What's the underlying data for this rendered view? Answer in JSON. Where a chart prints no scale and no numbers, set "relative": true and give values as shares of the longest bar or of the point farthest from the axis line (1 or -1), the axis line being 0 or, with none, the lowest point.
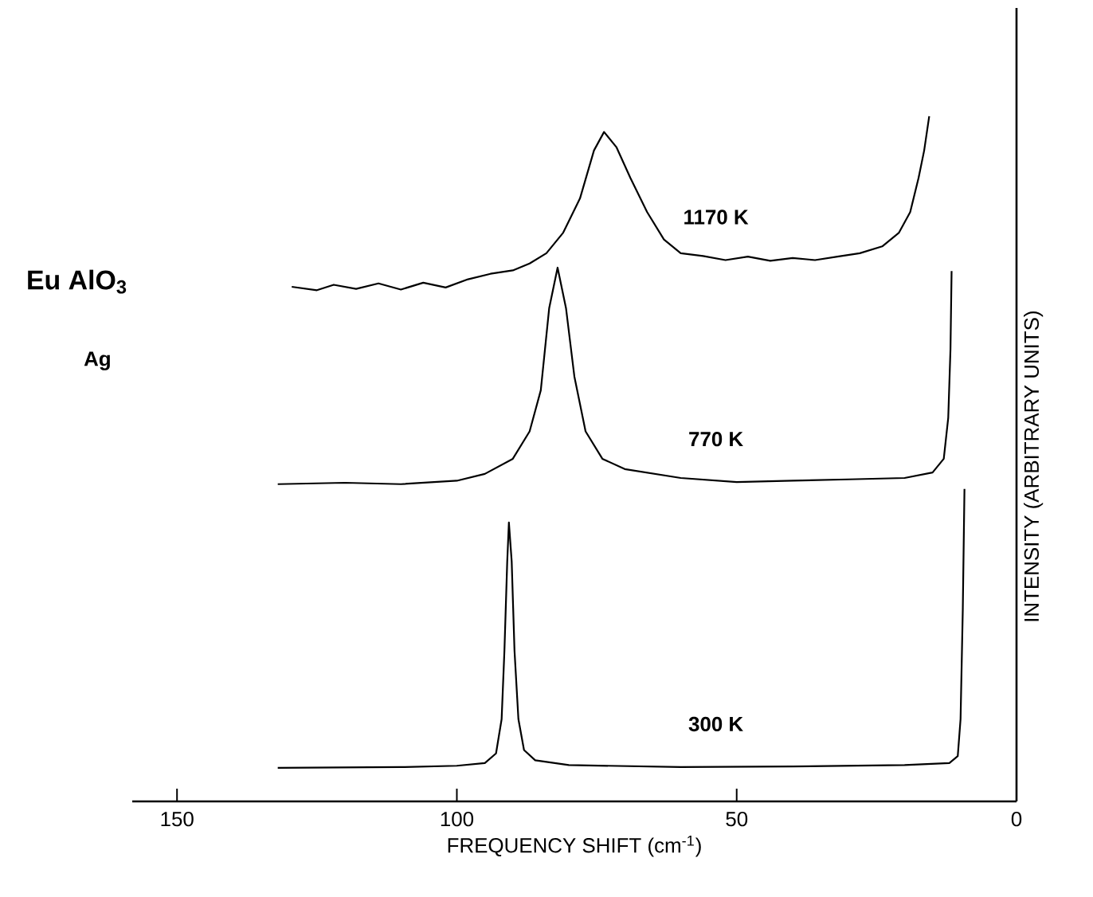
{
  "chart_data": {
    "type": "line",
    "title": "Eu AlO$_{3}$",
    "subtitle": "Ag",
    "xlabel": "FREQUENCY SHIFT (cm$^{-1}$)",
    "ylabel": "INTENSITY (ARBITRARY UNITS)",
    "xlim": [
      158,
      0
    ],
    "xticks": [
      150,
      100,
      50,
      0
    ],
    "relative": true,
    "series": [
      {
        "name": "1170 K",
        "color": "#000000",
        "x": [
          129.5,
          125,
          122,
          118,
          114,
          110,
          106,
          102,
          98,
          94,
          90,
          87,
          84,
          81,
          78,
          75.5,
          73.7,
          71.5,
          69,
          66,
          63,
          60,
          56,
          52,
          48,
          44,
          40,
          36,
          32,
          28,
          24,
          21,
          19,
          17.5,
          16.5,
          15.6
        ],
        "values": [
          0.751,
          0.746,
          0.754,
          0.748,
          0.756,
          0.747,
          0.757,
          0.75,
          0.762,
          0.77,
          0.775,
          0.785,
          0.8,
          0.83,
          0.88,
          0.95,
          0.977,
          0.955,
          0.91,
          0.86,
          0.82,
          0.8,
          0.796,
          0.79,
          0.795,
          0.789,
          0.793,
          0.79,
          0.795,
          0.8,
          0.81,
          0.83,
          0.86,
          0.91,
          0.95,
          1.0
        ]
      },
      {
        "name": "770 K",
        "color": "#000000",
        "x": [
          132,
          120,
          110,
          100,
          95,
          90,
          87,
          85,
          83.5,
          82,
          80.5,
          79,
          77,
          74,
          70,
          60,
          50,
          40,
          30,
          20,
          15,
          13,
          12.2,
          11.8,
          11.6
        ],
        "values": [
          0.463,
          0.465,
          0.463,
          0.468,
          0.478,
          0.5,
          0.54,
          0.6,
          0.72,
          0.779,
          0.72,
          0.62,
          0.54,
          0.5,
          0.485,
          0.472,
          0.466,
          0.468,
          0.47,
          0.472,
          0.48,
          0.5,
          0.56,
          0.66,
          0.774
        ]
      },
      {
        "name": "300 K",
        "color": "#000000",
        "x": [
          132,
          110,
          100,
          95,
          93,
          92,
          91.5,
          91,
          90.7,
          90.2,
          89.7,
          89,
          88,
          86,
          80,
          60,
          40,
          20,
          12,
          10.5,
          10,
          9.6,
          9.3
        ],
        "values": [
          0.049,
          0.05,
          0.052,
          0.056,
          0.07,
          0.12,
          0.22,
          0.35,
          0.407,
          0.35,
          0.22,
          0.12,
          0.075,
          0.06,
          0.053,
          0.05,
          0.051,
          0.053,
          0.056,
          0.066,
          0.12,
          0.28,
          0.456
        ]
      }
    ]
  }
}
